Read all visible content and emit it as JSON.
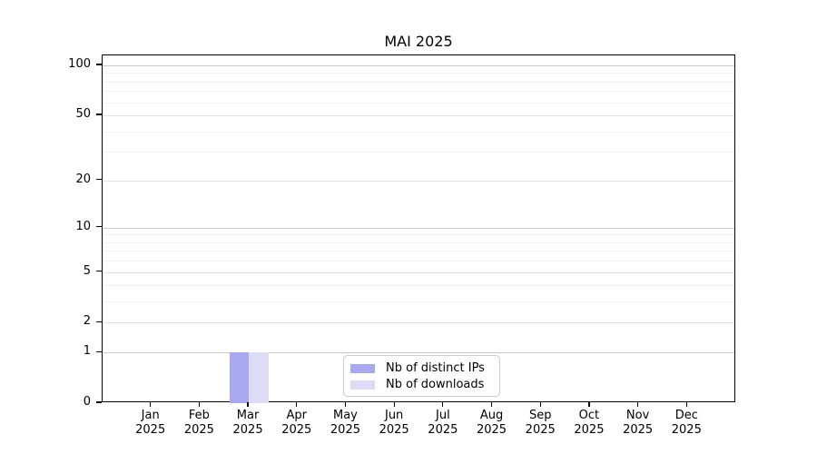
{
  "title": "MAI 2025",
  "chart_data": {
    "type": "bar",
    "title": "MAI 2025",
    "categories": [
      "Jan 2025",
      "Feb 2025",
      "Mar 2025",
      "Apr 2025",
      "May 2025",
      "Jun 2025",
      "Jul 2025",
      "Aug 2025",
      "Sep 2025",
      "Oct 2025",
      "Nov 2025",
      "Dec 2025"
    ],
    "series": [
      {
        "name": "Nb of distinct IPs",
        "color": "#a9a9f2",
        "values": [
          0,
          0,
          1,
          0,
          0,
          0,
          0,
          0,
          0,
          0,
          0,
          0
        ]
      },
      {
        "name": "Nb of downloads",
        "color": "#dcdcf8",
        "values": [
          0,
          0,
          1,
          0,
          0,
          0,
          0,
          0,
          0,
          0,
          0,
          0
        ]
      }
    ],
    "y_axis": {
      "scale": "log1p",
      "tick_values": [
        0,
        1,
        2,
        5,
        10,
        20,
        50,
        100
      ],
      "strong_gridlines": [
        1,
        10,
        100
      ],
      "medium_gridlines": [
        2,
        5,
        20,
        50
      ],
      "minor_gridlines": [
        3,
        4,
        6,
        7,
        8,
        9,
        30,
        40,
        60,
        70,
        80,
        90
      ],
      "ylim": [
        0,
        113
      ]
    },
    "x_axis": {
      "year_line": "2025"
    },
    "grid": "horizontal only",
    "legend_position": "lower center inside plot"
  },
  "colors": {
    "background": "#ffffff",
    "axis": "#000000",
    "text": "#000000",
    "grid_strong": "#c9c9c9",
    "grid_medium": "#e2e2e2",
    "grid_minor": "#f2f2f2",
    "legend_border": "#cccccc",
    "bar_distinct_ips": "#a9a9f2",
    "bar_downloads": "#dcdcf8"
  }
}
